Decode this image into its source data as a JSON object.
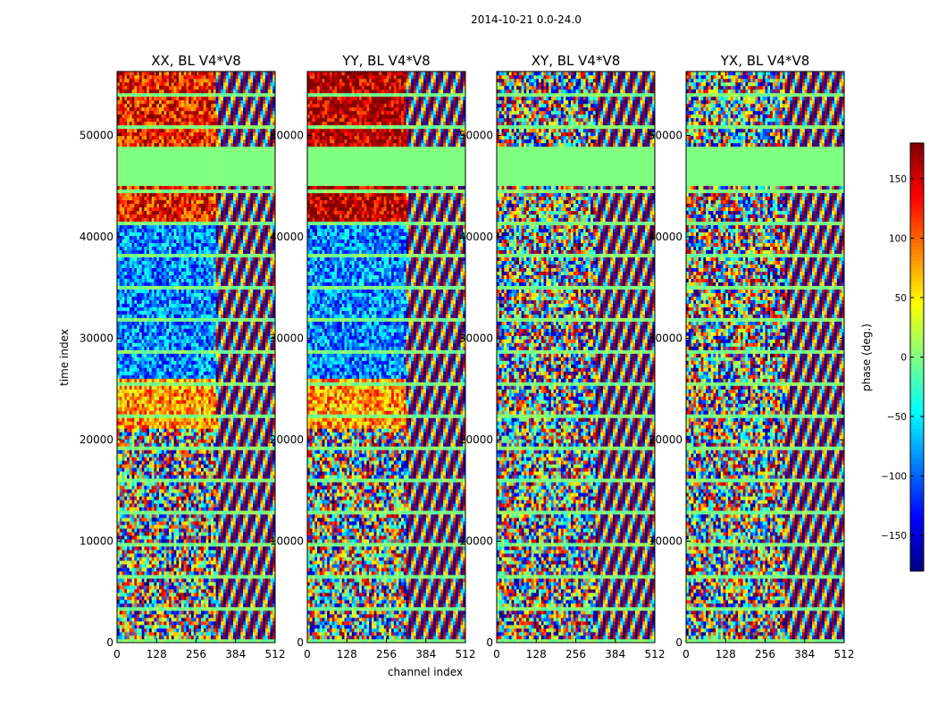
{
  "figure": {
    "suptitle": "2014-10-21 0.0-24.0"
  },
  "chart_data": {
    "type": "heatmap",
    "xlabel": "channel index",
    "ylabel": "time index",
    "xlim": [
      0,
      512
    ],
    "ylim": [
      0,
      56300
    ],
    "x_ticks": [
      0,
      128,
      256,
      384,
      512
    ],
    "y_ticks": [
      0,
      10000,
      20000,
      30000,
      40000,
      50000
    ],
    "colormap": "jet",
    "colorbar": {
      "label": "phase (deg.)",
      "range": [
        -180,
        180
      ],
      "ticks": [
        -150,
        -100,
        -50,
        0,
        50,
        100,
        150
      ]
    },
    "flagged_time_range": [
      45000,
      48800
    ],
    "panels": [
      {
        "title": "XX, BL V4*V8",
        "correlation": "XX"
      },
      {
        "title": "YY, BL V4*V8",
        "correlation": "YY"
      },
      {
        "title": "XY, BL V4*V8",
        "correlation": "XY"
      },
      {
        "title": "YX, BL V4*V8",
        "correlation": "YX"
      }
    ]
  }
}
